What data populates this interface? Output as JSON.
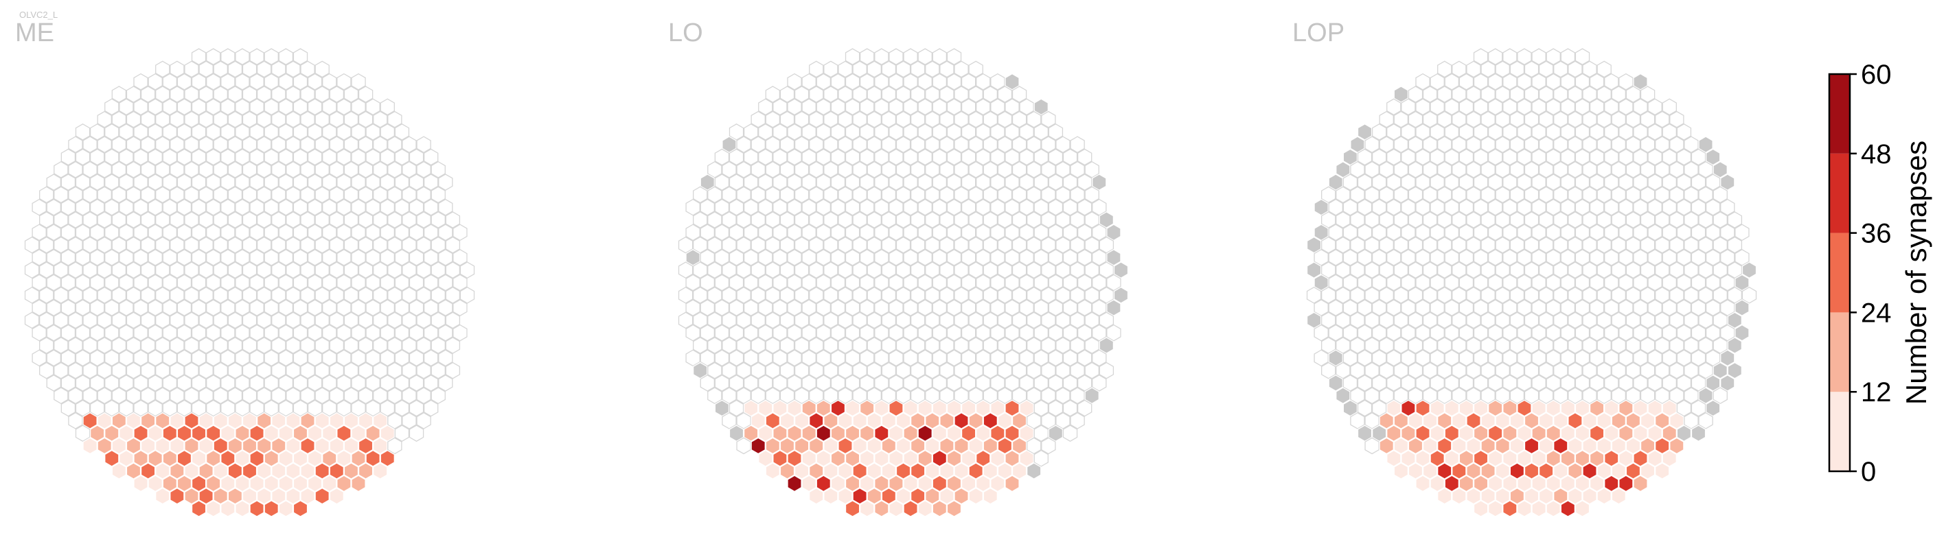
{
  "figure": {
    "cell_type_label": "OLVC2_L"
  },
  "chart_data": {
    "type": "heatmap",
    "description_of_encoding": "hexagonal eye-map; each hex is a column, fill = number of synapses",
    "colors": {
      "empty_fill": "#ffffff",
      "empty_stroke": "#d6d6d6",
      "no_data_fill": "#c8c8c8",
      "bins": [
        "#fde9e2",
        "#f8b49c",
        "#f06c4e",
        "#d42c25",
        "#a10e15"
      ]
    },
    "panels": [
      {
        "name": "ME",
        "bottom_region": {
          "center_x": -1,
          "rows_from_bottom": 8,
          "width": 0.62
        },
        "intense_cells": 28,
        "peak_bin": 2,
        "grey_cells": 0
      },
      {
        "name": "LO",
        "bottom_region": {
          "center_x": -1,
          "rows_from_bottom": 9,
          "width": 0.58
        },
        "intense_cells": 60,
        "peak_bin": 4,
        "grey_cells": 30
      },
      {
        "name": "LOP",
        "bottom_region": {
          "center_x": 0,
          "rows_from_bottom": 9,
          "width": 0.6
        },
        "intense_cells": 36,
        "peak_bin": 3,
        "grey_cells": 55
      }
    ],
    "colorbar": {
      "label": "Number of synapses",
      "ticks": [
        "0",
        "12",
        "24",
        "36",
        "48",
        "60"
      ],
      "range": [
        0,
        60
      ]
    }
  }
}
